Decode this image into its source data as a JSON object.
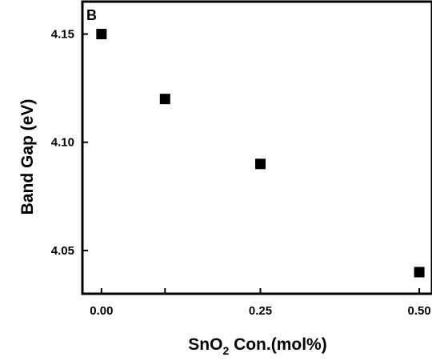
{
  "chart_data": {
    "type": "scatter",
    "panel_label": "B",
    "xlabel": {
      "main": "SnO",
      "subscript": "2",
      "suffix": " Con.(mol%)"
    },
    "ylabel": "Band Gap (eV)",
    "x_ticks": [
      {
        "value": 0.0,
        "label": "0.00"
      },
      {
        "value": 0.1,
        "label": ""
      },
      {
        "value": 0.25,
        "label": "0.25"
      },
      {
        "value": 0.5,
        "label": "0.50"
      }
    ],
    "y_ticks": [
      {
        "value": 4.05,
        "label": "4.05"
      },
      {
        "value": 4.1,
        "label": "4.10"
      },
      {
        "value": 4.15,
        "label": "4.15"
      }
    ],
    "xlim": [
      -0.03,
      0.52
    ],
    "ylim": [
      4.03,
      4.165
    ],
    "grid": false,
    "legend": "none",
    "marker": "square",
    "marker_color": "#000000",
    "points": [
      {
        "x": 0.0,
        "y": 4.15
      },
      {
        "x": 0.1,
        "y": 4.12
      },
      {
        "x": 0.25,
        "y": 4.09
      },
      {
        "x": 0.5,
        "y": 4.04
      }
    ]
  }
}
